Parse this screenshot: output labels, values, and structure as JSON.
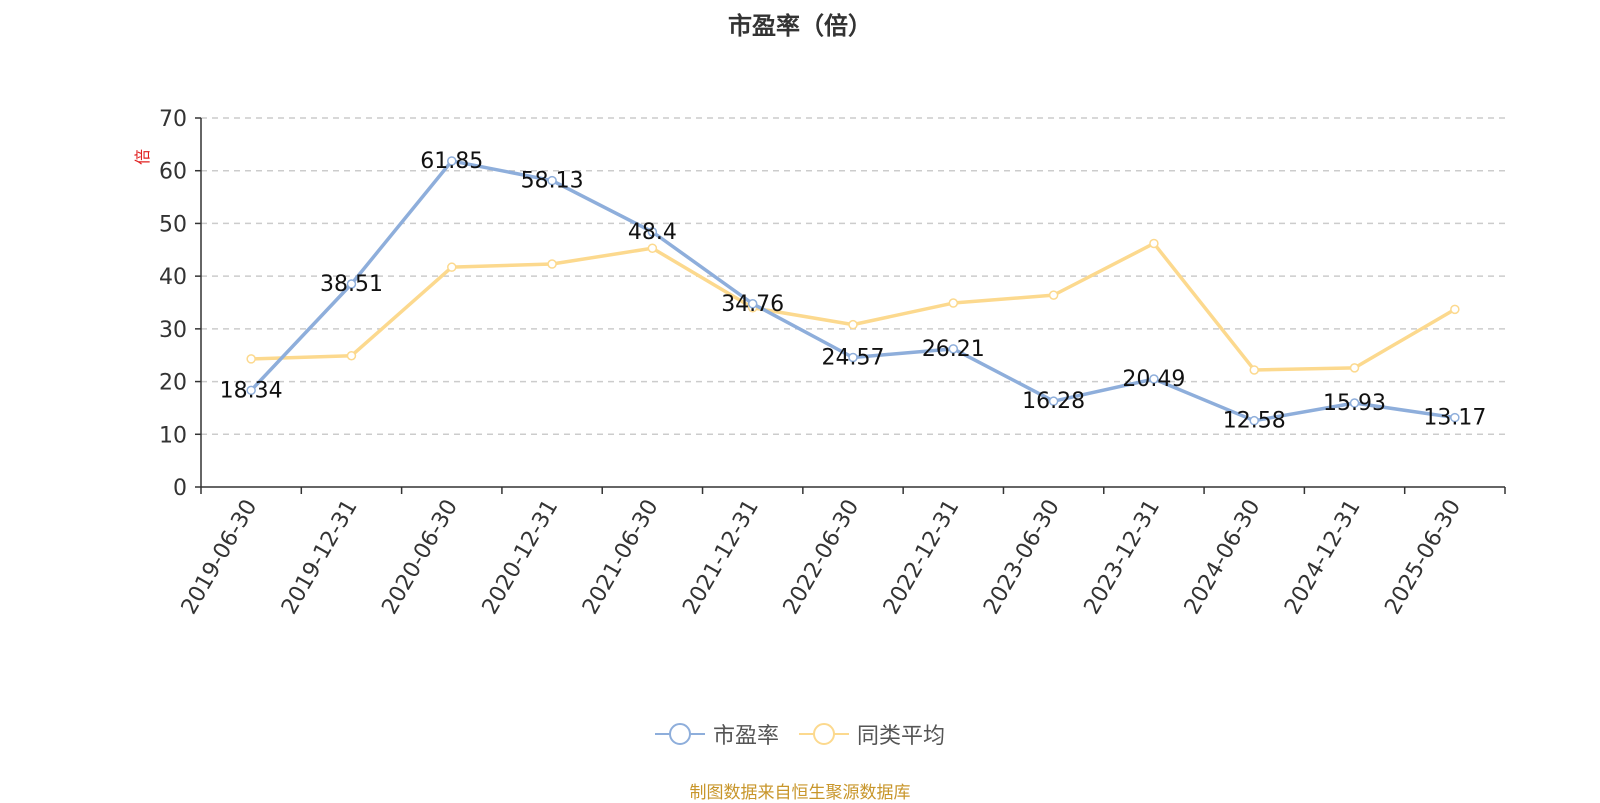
{
  "title": "市盈率（倍）",
  "source_note": "制图数据来自恒生聚源数据库",
  "colors": {
    "pe_line": "#8eaedb",
    "avg_line": "#fcd98e",
    "axis": "#333333",
    "grid": "#cccccc",
    "unit_label": "#e02020",
    "source_note": "#c8962b"
  },
  "chart_data": {
    "type": "line",
    "title": "市盈率（倍）",
    "xlabel": "",
    "ylabel": "倍",
    "ylim": [
      0,
      70
    ],
    "yticks": [
      0,
      10,
      20,
      30,
      40,
      50,
      60,
      70
    ],
    "grid": true,
    "legend_position": "bottom",
    "categories": [
      "2019-06-30",
      "2019-12-31",
      "2020-06-30",
      "2020-12-31",
      "2021-06-30",
      "2021-12-31",
      "2022-06-30",
      "2022-12-31",
      "2023-06-30",
      "2023-12-31",
      "2024-06-30",
      "2024-12-31",
      "2025-06-30"
    ],
    "series": [
      {
        "name": "市盈率",
        "color": "#8eaedb",
        "values": [
          18.34,
          38.51,
          61.85,
          58.13,
          48.4,
          34.76,
          24.57,
          26.21,
          16.28,
          20.49,
          12.58,
          15.93,
          13.17
        ],
        "labels": [
          "18.34",
          "38.51",
          "61.85",
          "58.13",
          "48.4",
          "34.76",
          "24.57",
          "26.21",
          "16.28",
          "20.49",
          "12.58",
          "15.93",
          "13.17"
        ]
      },
      {
        "name": "同类平均",
        "color": "#fcd98e",
        "values": [
          24.3,
          24.9,
          41.7,
          42.3,
          45.3,
          34.0,
          30.8,
          34.9,
          36.4,
          46.2,
          22.2,
          22.6,
          33.7
        ]
      }
    ]
  }
}
